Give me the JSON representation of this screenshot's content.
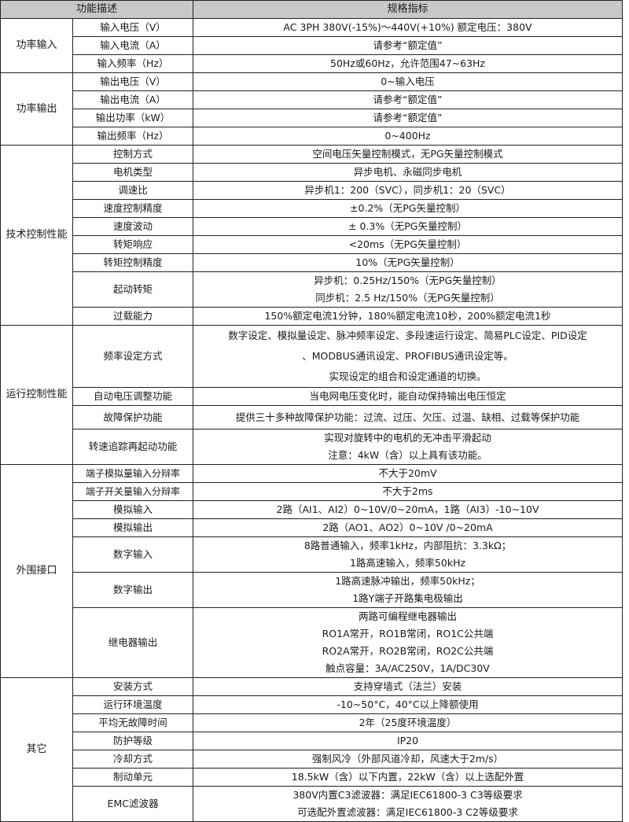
{
  "header": {
    "function_col": "功能描述",
    "spec_col": "规格指标"
  },
  "groups": [
    {
      "name": "功率输入",
      "rows": [
        {
          "item": "输入电压（V）",
          "spec": [
            "AC 3PH 380V(-15%)～440V(+10%) 额定电压：380V"
          ]
        },
        {
          "item": "输入电流（A）",
          "spec": [
            "请参考“额定值”"
          ]
        },
        {
          "item": "输入频率（Hz）",
          "spec": [
            "50Hz或60Hz，允许范围47~63Hz"
          ]
        }
      ]
    },
    {
      "name": "功率输出",
      "rows": [
        {
          "item": "输出电压（V）",
          "spec": [
            "0~输入电压"
          ]
        },
        {
          "item": "输出电流（A）",
          "spec": [
            "请参考“额定值”"
          ]
        },
        {
          "item": "输出功率（kW）",
          "spec": [
            "请参考“额定值”"
          ]
        },
        {
          "item": "输出频率（Hz）",
          "spec": [
            "0~400Hz"
          ]
        }
      ]
    },
    {
      "name": "技术控制性能",
      "rows": [
        {
          "item": "控制方式",
          "spec": [
            "空间电压矢量控制模式，无PG矢量控制模式"
          ]
        },
        {
          "item": "电机类型",
          "spec": [
            "异步电机、永磁同步电机"
          ]
        },
        {
          "item": "调速比",
          "spec": [
            "异步机1：200（SVC），同步机1：20（SVC）"
          ]
        },
        {
          "item": "速度控制精度",
          "spec": [
            "±0.2%（无PG矢量控制）"
          ]
        },
        {
          "item": "速度波动",
          "spec": [
            "± 0.3%（无PG矢量控制）"
          ]
        },
        {
          "item": "转矩响应",
          "spec": [
            "<20ms（无PG矢量控制）"
          ]
        },
        {
          "item": "转矩控制精度",
          "spec": [
            "10%（无PG矢量控制）"
          ]
        },
        {
          "item": "起动转矩",
          "spec": [
            "异步机：0.25Hz/150%（无PG矢量控制）",
            "同步机：2.5 Hz/150%（无PG矢量控制）"
          ]
        },
        {
          "item": "过载能力",
          "spec": [
            "150%额定电流1分钟，180%额定电流10秒，200%额定电流1秒"
          ]
        }
      ]
    },
    {
      "name": "运行控制性能",
      "rows": [
        {
          "item": "频率设定方式",
          "spec": [
            "数字设定、模拟量设定、脉冲频率设定、多段速运行设定、简易PLC设定、PID设定",
            "、MODBUS通讯设定、PROFIBUS通讯设定等。",
            "实现设定的组合和设定通道的切换。"
          ]
        },
        {
          "item": "自动电压调整功能",
          "spec": [
            "当电网电压变化时，能自动保持输出电压恒定"
          ]
        },
        {
          "item": "故障保护功能",
          "spec": [
            "提供三十多种故障保护功能：过流、过压、欠压、过温、缺相、过载等保护功能"
          ]
        },
        {
          "item": "转速追踪再起动功能",
          "spec": [
            "实现对旋转中的电机的无冲击平滑起动",
            "注意：4kW（含）以上具有该功能。"
          ]
        }
      ]
    },
    {
      "name": "外围接口",
      "rows": [
        {
          "item": "端子模拟量输入分辩率",
          "spec": [
            "不大于20mV"
          ]
        },
        {
          "item": "端子开关量输入分辩率",
          "spec": [
            "不大于2ms"
          ]
        },
        {
          "item": "模拟输入",
          "spec": [
            "2路（AI1、AI2）0~10V/0~20mA，1路（AI3）-10~10V"
          ]
        },
        {
          "item": "模拟输出",
          "spec": [
            "2路（AO1、AO2）0~10V /0~20mA"
          ]
        },
        {
          "item": "数字输入",
          "spec": [
            "8路普通输入，频率1kHz，内部阻抗：3.3kΩ；",
            "1路高速输入，频率50kHz"
          ]
        },
        {
          "item": "数字输出",
          "spec": [
            "1路高速脉冲输出，频率50kHz；",
            "1路Y端子开路集电极输出"
          ]
        },
        {
          "item": "继电器输出",
          "spec": [
            "两路可编程继电器输出",
            "RO1A常开，RO1B常闭，RO1C公共端",
            "RO2A常开，RO2B常闭，RO2C公共端",
            "触点容量：3A/AC250V，1A/DC30V"
          ]
        }
      ]
    },
    {
      "name": "其它",
      "rows": [
        {
          "item": "安装方式",
          "spec": [
            "支持穿墙式（法兰）安装"
          ]
        },
        {
          "item": "运行环境温度",
          "spec": [
            "-10~50°C，40°C以上降额使用"
          ]
        },
        {
          "item": "平均无故障时间",
          "spec": [
            "2年（25度环境温度）"
          ]
        },
        {
          "item": "防护等级",
          "spec": [
            "IP20"
          ]
        },
        {
          "item": "冷却方式",
          "spec": [
            "强制风冷（外部风道冷却，风速大于2m/s）"
          ]
        },
        {
          "item": "制动单元",
          "spec": [
            "18.5kW（含）以下内置，22kW（含）以上选配外置"
          ]
        },
        {
          "item": "EMC滤波器",
          "spec": [
            "380V内置C3滤波器：满足IEC61800-3 C3等级要求",
            "可选配外置滤波器：满足IEC61800-3 C2等级要求"
          ]
        }
      ]
    }
  ]
}
